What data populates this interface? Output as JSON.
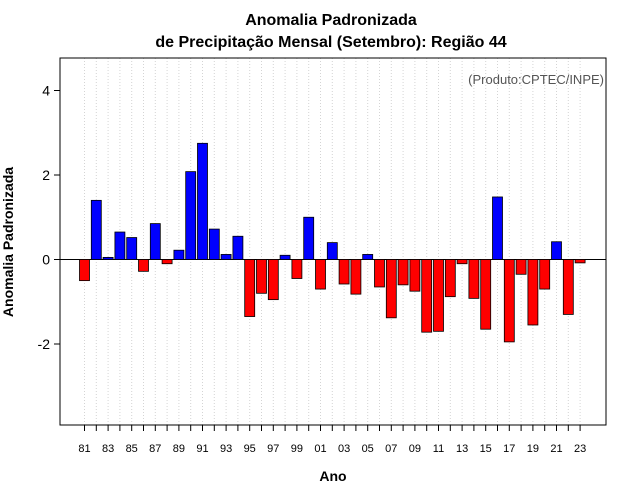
{
  "chart_data": {
    "type": "bar",
    "title_line1": "Anomalia Padronizada",
    "title_line2": "de Precipitação Mensal (Setembro): Região 44",
    "credit": "(Produto:CPTEC/INPE)",
    "xlabel": "Ano",
    "ylabel": "Anomalia Padronizada",
    "ylim": [
      -3.9,
      4.75
    ],
    "yticks": [
      -2,
      0,
      2,
      4
    ],
    "ytick_labels": [
      "-2",
      "0",
      "2",
      "4"
    ],
    "grid": "vertical dotted",
    "positive_color": "#0000ff",
    "negative_color": "#ff0000",
    "categories": [
      "81",
      "82",
      "83",
      "84",
      "85",
      "86",
      "87",
      "88",
      "89",
      "90",
      "91",
      "92",
      "93",
      "94",
      "95",
      "96",
      "97",
      "98",
      "99",
      "00",
      "01",
      "02",
      "03",
      "04",
      "05",
      "06",
      "07",
      "08",
      "09",
      "10",
      "11",
      "12",
      "13",
      "14",
      "15",
      "16",
      "17",
      "18",
      "19",
      "20",
      "21",
      "22",
      "23"
    ],
    "xtick_labels": [
      "81",
      "83",
      "85",
      "87",
      "89",
      "91",
      "93",
      "95",
      "97",
      "99",
      "01",
      "03",
      "05",
      "07",
      "09",
      "11",
      "13",
      "15",
      "17",
      "19",
      "21",
      "23"
    ],
    "values": [
      -0.5,
      1.4,
      0.05,
      0.65,
      0.52,
      -0.28,
      0.85,
      -0.1,
      0.22,
      2.08,
      2.75,
      0.72,
      0.12,
      0.55,
      -1.35,
      -0.8,
      -0.95,
      0.1,
      -0.45,
      1.0,
      -0.7,
      0.4,
      -0.58,
      -0.82,
      0.12,
      -0.65,
      -1.38,
      -0.6,
      -0.75,
      -1.72,
      -1.7,
      -0.88,
      -0.1,
      -0.92,
      -1.65,
      1.48,
      -1.95,
      -0.35,
      -1.55,
      -0.7,
      0.42,
      -1.3,
      -0.08
    ]
  }
}
